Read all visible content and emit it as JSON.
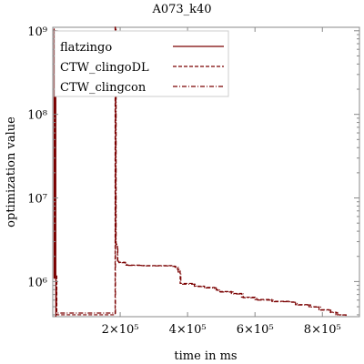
{
  "chart_data": {
    "type": "line",
    "title": "A073_k40",
    "xlabel": "time in ms",
    "ylabel": "optimization value",
    "xlim": [
      0,
      910000
    ],
    "ylim": [
      380000,
      1100000000
    ],
    "yscale": "log",
    "grid": false,
    "legend_position": "top-left",
    "x_ticks": [
      {
        "value": 200000,
        "label": "2×10⁵"
      },
      {
        "value": 400000,
        "label": "4×10⁵"
      },
      {
        "value": 600000,
        "label": "6×10⁵"
      },
      {
        "value": 800000,
        "label": "8×10⁵"
      }
    ],
    "y_ticks": [
      {
        "value": 1000000,
        "label": "10⁶"
      },
      {
        "value": 10000000,
        "label": "10⁷"
      },
      {
        "value": 100000000,
        "label": "10⁸"
      },
      {
        "value": 1000000000,
        "label": "10⁹"
      }
    ],
    "series": [
      {
        "name": "flatzingo",
        "color": "#7a0000",
        "dash": "solid",
        "points": [
          [
            3000,
            1050000000
          ],
          [
            4000,
            1100000
          ],
          [
            6000,
            1000000000
          ],
          [
            9000,
            380000
          ]
        ]
      },
      {
        "name": "CTW_clingoDL",
        "color": "#7a0000",
        "dash": "dashed",
        "points": [
          [
            6000,
            1300000
          ],
          [
            8000,
            1200000
          ],
          [
            12000,
            400000
          ],
          [
            185000,
            1100000000
          ],
          [
            187000,
            2800000
          ],
          [
            192000,
            1800000
          ],
          [
            196000,
            1700000
          ],
          [
            215000,
            1570000
          ],
          [
            260000,
            1550000
          ],
          [
            355000,
            1530000
          ],
          [
            362000,
            1500000
          ],
          [
            370000,
            1400000
          ],
          [
            378000,
            950000
          ],
          [
            420000,
            880000
          ],
          [
            450000,
            850000
          ],
          [
            480000,
            800000
          ],
          [
            490000,
            760000
          ],
          [
            530000,
            720000
          ],
          [
            560000,
            650000
          ],
          [
            600000,
            610000
          ],
          [
            650000,
            580000
          ],
          [
            700000,
            570000
          ],
          [
            720000,
            530000
          ],
          [
            760000,
            500000
          ],
          [
            790000,
            460000
          ],
          [
            820000,
            430000
          ],
          [
            840000,
            400000
          ],
          [
            870000,
            390000
          ]
        ]
      },
      {
        "name": "CTW_clingcon",
        "color": "#7a0000",
        "dash": "dashdot",
        "points": [
          [
            5000,
            1250000
          ],
          [
            7000,
            1150000
          ],
          [
            11000,
            420000
          ],
          [
            186000,
            1100000000
          ],
          [
            188000,
            2600000
          ],
          [
            193000,
            1750000
          ],
          [
            197000,
            1680000
          ],
          [
            220000,
            1560000
          ],
          [
            270000,
            1540000
          ],
          [
            356000,
            1520000
          ],
          [
            364000,
            1480000
          ],
          [
            372000,
            1300000
          ],
          [
            380000,
            930000
          ],
          [
            425000,
            870000
          ],
          [
            455000,
            840000
          ],
          [
            485000,
            790000
          ],
          [
            495000,
            750000
          ],
          [
            535000,
            710000
          ],
          [
            565000,
            640000
          ],
          [
            605000,
            600000
          ],
          [
            655000,
            575000
          ],
          [
            705000,
            565000
          ],
          [
            725000,
            525000
          ],
          [
            765000,
            495000
          ],
          [
            795000,
            455000
          ],
          [
            825000,
            425000
          ],
          [
            845000,
            398000
          ],
          [
            870000,
            388000
          ]
        ]
      }
    ]
  }
}
